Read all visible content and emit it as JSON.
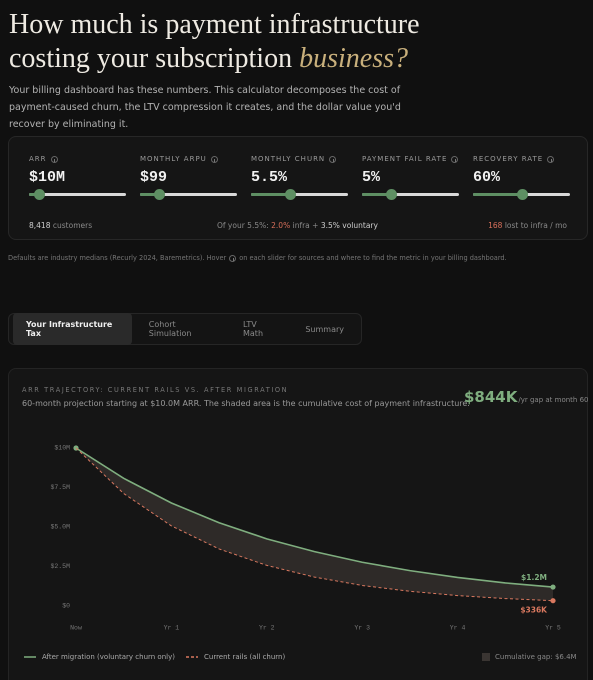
{
  "header": {
    "title": "How much is payment infrastructure costing your subscription",
    "title_emphasis": "business?",
    "intro": "Your billing dashboard has these numbers. This calculator decomposes the cost of payment-caused churn, the LTV compression it creates, and the dollar value you'd recover by eliminating it."
  },
  "controls": [
    {
      "label": "ARR",
      "value": "$10M"
    },
    {
      "label": "MONTHLY ARPU",
      "value": "$99"
    },
    {
      "label": "MONTHLY CHURN",
      "value": "5.5%"
    },
    {
      "label": "PAYMENT FAIL RATE",
      "value": "5%"
    },
    {
      "label": "RECOVERY RATE",
      "value": "60%"
    }
  ],
  "summary": {
    "customers_count": "8,418",
    "customers_text": "customers",
    "split_prefix": "Of your 5.5%:",
    "split_infra": "2.0%",
    "split_mid": "infra +",
    "split_voluntary": "3.5% voluntary",
    "lost_count": "168",
    "lost_text": "lost to infra / mo"
  },
  "footnote": {
    "before": "Defaults are industry medians (Recurly 2024, Baremetrics). Hover",
    "after": "on each slider for sources and where to find the metric in your billing dashboard."
  },
  "tabs": [
    "Your Infrastructure Tax",
    "Cohort Simulation",
    "LTV Math",
    "Summary"
  ],
  "chart_data": {
    "type": "line",
    "title": "ARR TRAJECTORY: CURRENT RAILS VS. AFTER MIGRATION",
    "subtitle": "60-month projection starting at $10.0M ARR. The shaded area is the cumulative cost of payment infrastructure.",
    "headline_value": "$844K",
    "headline_text": "/yr gap at month 60",
    "x": [
      0,
      6,
      12,
      18,
      24,
      30,
      36,
      42,
      48,
      54,
      60
    ],
    "xlim": [
      0,
      60
    ],
    "xticks": [
      {
        "value": 0,
        "label": "Now"
      },
      {
        "value": 12,
        "label": "Yr 1"
      },
      {
        "value": 24,
        "label": "Yr 2"
      },
      {
        "value": 36,
        "label": "Yr 3"
      },
      {
        "value": 48,
        "label": "Yr 4"
      },
      {
        "value": 60,
        "label": "Yr 5"
      }
    ],
    "ylim": [
      0,
      10
    ],
    "yticks": [
      {
        "value": 0,
        "label": "$0"
      },
      {
        "value": 2.5,
        "label": "$2.5M"
      },
      {
        "value": 5,
        "label": "$5.0M"
      },
      {
        "value": 7.5,
        "label": "$7.5M"
      },
      {
        "value": 10,
        "label": "$10M"
      }
    ],
    "series": [
      {
        "name": "After migration (voluntary churn only)",
        "color": "#7fae7f",
        "dashed": false,
        "values": [
          10,
          8.08,
          6.52,
          5.27,
          4.25,
          3.44,
          2.77,
          2.24,
          1.81,
          1.46,
          1.2
        ],
        "value_labels": [
          null,
          null,
          null,
          null,
          null,
          null,
          null,
          null,
          null,
          null,
          "$1.2M"
        ]
      },
      {
        "name": "Current rails (all churn)",
        "color": "#d9785f",
        "dashed": true,
        "values": [
          10,
          7.12,
          5.07,
          3.61,
          2.57,
          1.83,
          1.3,
          0.93,
          0.66,
          0.47,
          0.336
        ],
        "value_labels": [
          null,
          null,
          null,
          null,
          null,
          null,
          null,
          null,
          null,
          null,
          "$336K"
        ]
      }
    ],
    "gap_legend": "Cumulative gap: $6.4M",
    "gap_color": "#2e2a28"
  }
}
